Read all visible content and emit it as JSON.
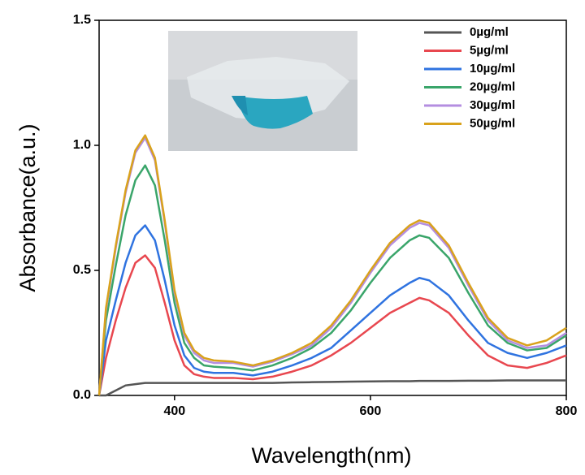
{
  "chart_data": {
    "type": "line",
    "x_label": "Wavelength(nm)",
    "y_label": "Absorbance(a.u.)",
    "x": [
      323,
      330,
      340,
      350,
      360,
      370,
      380,
      390,
      400,
      410,
      420,
      430,
      440,
      460,
      480,
      500,
      520,
      540,
      560,
      580,
      600,
      620,
      640,
      650,
      660,
      680,
      700,
      720,
      740,
      760,
      780,
      800
    ],
    "series": [
      {
        "name": "0µg/ml",
        "color": "#555555",
        "values": [
          0,
          0,
          0.02,
          0.04,
          0.045,
          0.05,
          0.05,
          0.05,
          0.05,
          0.05,
          0.05,
          0.05,
          0.05,
          0.05,
          0.05,
          0.05,
          0.052,
          0.053,
          0.054,
          0.055,
          0.056,
          0.057,
          0.057,
          0.058,
          0.058,
          0.058,
          0.059,
          0.059,
          0.06,
          0.06,
          0.06,
          0.06
        ]
      },
      {
        "name": "5µg/ml",
        "color": "#e8474f",
        "values": [
          0,
          0.15,
          0.3,
          0.43,
          0.53,
          0.56,
          0.51,
          0.37,
          0.22,
          0.12,
          0.085,
          0.075,
          0.07,
          0.07,
          0.065,
          0.075,
          0.095,
          0.12,
          0.16,
          0.21,
          0.27,
          0.33,
          0.37,
          0.39,
          0.38,
          0.33,
          0.24,
          0.16,
          0.12,
          0.11,
          0.13,
          0.16
        ]
      },
      {
        "name": "10µg/ml",
        "color": "#2f73e0",
        "values": [
          0,
          0.22,
          0.38,
          0.53,
          0.64,
          0.68,
          0.62,
          0.46,
          0.28,
          0.16,
          0.11,
          0.095,
          0.09,
          0.09,
          0.08,
          0.095,
          0.12,
          0.15,
          0.19,
          0.26,
          0.33,
          0.4,
          0.45,
          0.47,
          0.46,
          0.4,
          0.3,
          0.21,
          0.17,
          0.15,
          0.17,
          0.2
        ]
      },
      {
        "name": "20µg/ml",
        "color": "#3aa56a",
        "values": [
          0,
          0.3,
          0.52,
          0.72,
          0.86,
          0.92,
          0.84,
          0.62,
          0.37,
          0.21,
          0.15,
          0.12,
          0.115,
          0.11,
          0.1,
          0.12,
          0.15,
          0.19,
          0.25,
          0.34,
          0.45,
          0.55,
          0.62,
          0.64,
          0.63,
          0.55,
          0.41,
          0.28,
          0.21,
          0.18,
          0.19,
          0.24
        ]
      },
      {
        "name": "30µg/ml",
        "color": "#b48ee0",
        "values": [
          0,
          0.34,
          0.59,
          0.81,
          0.97,
          1.03,
          0.94,
          0.69,
          0.41,
          0.24,
          0.17,
          0.14,
          0.13,
          0.13,
          0.115,
          0.135,
          0.165,
          0.2,
          0.27,
          0.37,
          0.49,
          0.6,
          0.67,
          0.69,
          0.68,
          0.59,
          0.44,
          0.3,
          0.22,
          0.19,
          0.2,
          0.25
        ]
      },
      {
        "name": "50µg/ml",
        "color": "#d9a21c",
        "values": [
          0,
          0.35,
          0.6,
          0.82,
          0.98,
          1.04,
          0.95,
          0.7,
          0.42,
          0.25,
          0.18,
          0.15,
          0.14,
          0.135,
          0.12,
          0.14,
          0.17,
          0.21,
          0.28,
          0.38,
          0.5,
          0.61,
          0.68,
          0.7,
          0.69,
          0.6,
          0.45,
          0.31,
          0.23,
          0.2,
          0.22,
          0.27
        ]
      }
    ],
    "xlim": [
      323,
      800
    ],
    "xticks": [
      400,
      600,
      800
    ],
    "ylim": [
      0,
      1.5
    ],
    "yticks": [
      {
        "value": 0,
        "label": "0.0"
      },
      0.5,
      {
        "value": 1,
        "label": "1.0"
      },
      1.5
    ],
    "legend": "upper right",
    "grid": false
  }
}
